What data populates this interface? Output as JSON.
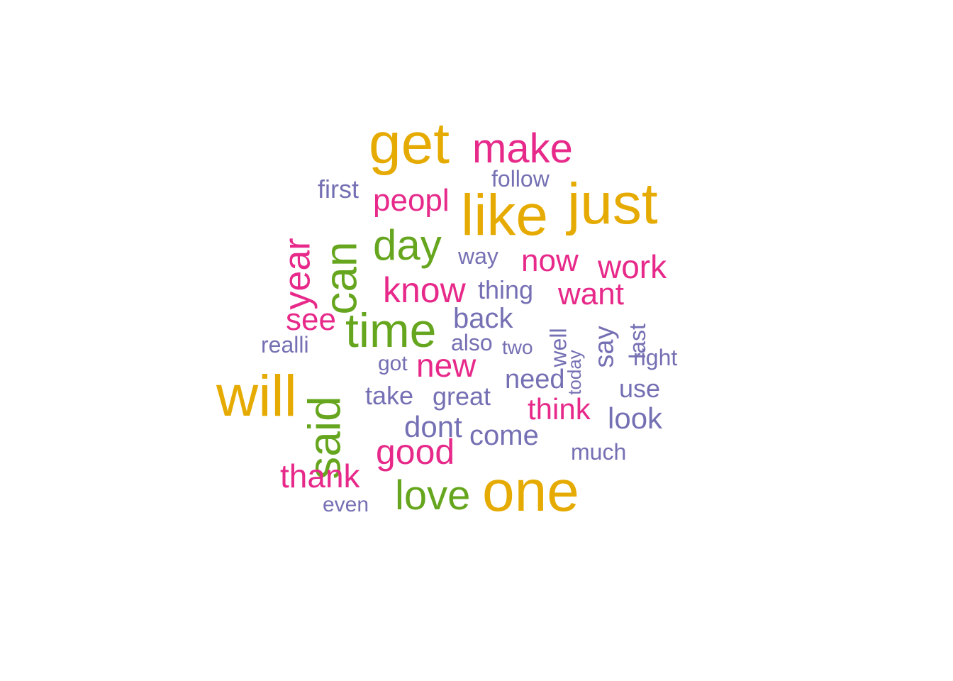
{
  "palette": {
    "gold": "#E6AB02",
    "magenta": "#E7298A",
    "green": "#66A61E",
    "purple": "#7570B3"
  },
  "words": [
    {
      "id": "get",
      "text": "get",
      "color": "gold",
      "rotated": false
    },
    {
      "id": "make",
      "text": "make",
      "color": "magenta",
      "rotated": false
    },
    {
      "id": "follow",
      "text": "follow",
      "color": "purple",
      "rotated": false
    },
    {
      "id": "first",
      "text": "first",
      "color": "purple",
      "rotated": false
    },
    {
      "id": "peopl",
      "text": "peopl",
      "color": "magenta",
      "rotated": false
    },
    {
      "id": "like",
      "text": "like",
      "color": "gold",
      "rotated": false
    },
    {
      "id": "just",
      "text": "just",
      "color": "gold",
      "rotated": false
    },
    {
      "id": "year",
      "text": "year",
      "color": "magenta",
      "rotated": true
    },
    {
      "id": "can",
      "text": "can",
      "color": "green",
      "rotated": true
    },
    {
      "id": "day",
      "text": "day",
      "color": "green",
      "rotated": false
    },
    {
      "id": "way",
      "text": "way",
      "color": "purple",
      "rotated": false
    },
    {
      "id": "now",
      "text": "now",
      "color": "magenta",
      "rotated": false
    },
    {
      "id": "work",
      "text": "work",
      "color": "magenta",
      "rotated": false
    },
    {
      "id": "know",
      "text": "know",
      "color": "magenta",
      "rotated": false
    },
    {
      "id": "thing",
      "text": "thing",
      "color": "purple",
      "rotated": false
    },
    {
      "id": "want",
      "text": "want",
      "color": "magenta",
      "rotated": false
    },
    {
      "id": "see",
      "text": "see",
      "color": "magenta",
      "rotated": false
    },
    {
      "id": "time",
      "text": "time",
      "color": "green",
      "rotated": false
    },
    {
      "id": "back",
      "text": "back",
      "color": "purple",
      "rotated": false
    },
    {
      "id": "well",
      "text": "well",
      "color": "purple",
      "rotated": true
    },
    {
      "id": "say",
      "text": "say",
      "color": "purple",
      "rotated": true
    },
    {
      "id": "last",
      "text": "last",
      "color": "purple",
      "rotated": true
    },
    {
      "id": "realli",
      "text": "realli",
      "color": "purple",
      "rotated": false
    },
    {
      "id": "also",
      "text": "also",
      "color": "purple",
      "rotated": false
    },
    {
      "id": "two",
      "text": "two",
      "color": "purple",
      "rotated": false
    },
    {
      "id": "today",
      "text": "today",
      "color": "purple",
      "rotated": true
    },
    {
      "id": "right",
      "text": "right",
      "color": "purple",
      "rotated": false
    },
    {
      "id": "will",
      "text": "will",
      "color": "gold",
      "rotated": false
    },
    {
      "id": "said",
      "text": "said",
      "color": "green",
      "rotated": true
    },
    {
      "id": "got",
      "text": "got",
      "color": "purple",
      "rotated": false
    },
    {
      "id": "new",
      "text": "new",
      "color": "magenta",
      "rotated": false
    },
    {
      "id": "need",
      "text": "need",
      "color": "purple",
      "rotated": false
    },
    {
      "id": "use",
      "text": "use",
      "color": "purple",
      "rotated": false
    },
    {
      "id": "take",
      "text": "take",
      "color": "purple",
      "rotated": false
    },
    {
      "id": "great",
      "text": "great",
      "color": "purple",
      "rotated": false
    },
    {
      "id": "think",
      "text": "think",
      "color": "magenta",
      "rotated": false
    },
    {
      "id": "look",
      "text": "look",
      "color": "purple",
      "rotated": false
    },
    {
      "id": "dont",
      "text": "dont",
      "color": "purple",
      "rotated": false
    },
    {
      "id": "come",
      "text": "come",
      "color": "purple",
      "rotated": false
    },
    {
      "id": "good",
      "text": "good",
      "color": "magenta",
      "rotated": false
    },
    {
      "id": "much",
      "text": "much",
      "color": "purple",
      "rotated": false
    },
    {
      "id": "thank",
      "text": "thank",
      "color": "magenta",
      "rotated": false
    },
    {
      "id": "love",
      "text": "love",
      "color": "green",
      "rotated": false
    },
    {
      "id": "one",
      "text": "one",
      "color": "gold",
      "rotated": false
    },
    {
      "id": "even",
      "text": "even",
      "color": "purple",
      "rotated": false
    }
  ]
}
